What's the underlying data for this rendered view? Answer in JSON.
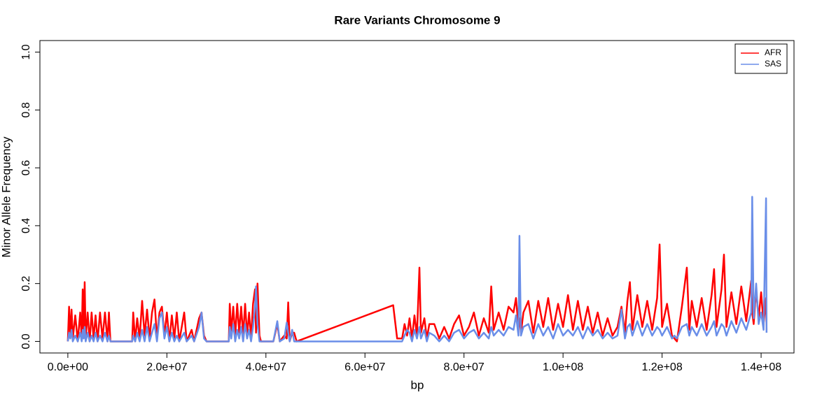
{
  "chart_data": {
    "type": "line",
    "title": "Rare Variants Chromosome 9",
    "xlabel": "bp",
    "ylabel": "Minor Allele Frequency",
    "x": [
      0,
      250000,
      500000,
      750000,
      1000000,
      1500000,
      2000000,
      2500000,
      2800000,
      3000000,
      3200000,
      3400000,
      3600000,
      4000000,
      4400000,
      4800000,
      5200000,
      5600000,
      6000000,
      6500000,
      7000000,
      7500000,
      8000000,
      8300000,
      8600000,
      13000000,
      13200000,
      13600000,
      14000000,
      14500000,
      15000000,
      15500000,
      16000000,
      16500000,
      17000000,
      17500000,
      18000000,
      18500000,
      19000000,
      19500000,
      20000000,
      20500000,
      21000000,
      21500000,
      22000000,
      22500000,
      23500000,
      24000000,
      25000000,
      25500000,
      26500000,
      27000000,
      27500000,
      28000000,
      32500000,
      32700000,
      33000000,
      33400000,
      33800000,
      34200000,
      34600000,
      35000000,
      35400000,
      35800000,
      36200000,
      36600000,
      37000000,
      37400000,
      37800000,
      38000000,
      38300000,
      38700000,
      39000000,
      41500000,
      42300000,
      42800000,
      43700000,
      44200000,
      44500000,
      44800000,
      45300000,
      45700000,
      46200000,
      65700000,
      66500000,
      67500000,
      68000000,
      68500000,
      69000000,
      69500000,
      70000000,
      70500000,
      71000000,
      71300000,
      72000000,
      72500000,
      73000000,
      74000000,
      75000000,
      76000000,
      77000000,
      78000000,
      79000000,
      80000000,
      81000000,
      82000000,
      83000000,
      84000000,
      85000000,
      85500000,
      86000000,
      87000000,
      88000000,
      89000000,
      90000000,
      90500000,
      91000000,
      91200000,
      91500000,
      92000000,
      93000000,
      94000000,
      95000000,
      96000000,
      97000000,
      98000000,
      99000000,
      100000000,
      101000000,
      102000000,
      103000000,
      104000000,
      105000000,
      106000000,
      107000000,
      108000000,
      109000000,
      110000000,
      111000000,
      111800000,
      112500000,
      113000000,
      113500000,
      114000000,
      115000000,
      116000000,
      117000000,
      118000000,
      119000000,
      119500000,
      120000000,
      121000000,
      122000000,
      122500000,
      123000000,
      124000000,
      125000000,
      125500000,
      126000000,
      127000000,
      128000000,
      129000000,
      130000000,
      130500000,
      131000000,
      132000000,
      132500000,
      133000000,
      134000000,
      135000000,
      136000000,
      137000000,
      138000000,
      138200000,
      138500000,
      139000000,
      139500000,
      140000000,
      140500000,
      141000000,
      141100000
    ],
    "series": [
      {
        "name": "AFR",
        "color": "#ff0000",
        "values": [
          0,
          0.12,
          0.02,
          0.11,
          0.01,
          0.09,
          0,
          0.1,
          0.01,
          0.18,
          0.02,
          0.205,
          0.01,
          0.1,
          0,
          0.1,
          0.01,
          0.09,
          0,
          0.1,
          0.01,
          0.1,
          0,
          0.1,
          0,
          0,
          0.1,
          0,
          0.08,
          0.01,
          0.14,
          0.02,
          0.11,
          0.01,
          0.1,
          0.145,
          0.01,
          0.1,
          0.12,
          0.02,
          0.1,
          0,
          0.09,
          0.01,
          0.1,
          0,
          0.1,
          0,
          0.04,
          0,
          0.08,
          0.1,
          0.02,
          0,
          0,
          0.13,
          0.03,
          0.12,
          0.02,
          0.13,
          0.03,
          0.12,
          0.02,
          0.13,
          0.02,
          0.1,
          0.01,
          0.13,
          0.18,
          0.03,
          0.2,
          0.02,
          0,
          0,
          0.06,
          0,
          0.02,
          0.01,
          0.135,
          0,
          0.03,
          0.03,
          0,
          0.125,
          0.01,
          0.01,
          0.06,
          0.02,
          0.08,
          0.01,
          0.09,
          0.02,
          0.255,
          0.03,
          0.08,
          0.01,
          0.06,
          0.06,
          0.01,
          0.05,
          0.01,
          0.06,
          0.09,
          0.02,
          0.05,
          0.1,
          0.02,
          0.08,
          0.03,
          0.19,
          0.04,
          0.1,
          0.04,
          0.12,
          0.1,
          0.15,
          0.05,
          0.08,
          0.03,
          0.1,
          0.14,
          0.03,
          0.14,
          0.05,
          0.15,
          0.04,
          0.13,
          0.05,
          0.16,
          0.04,
          0.14,
          0.04,
          0.12,
          0.03,
          0.1,
          0.02,
          0.08,
          0.02,
          0.05,
          0.12,
          0.03,
          0.14,
          0.205,
          0.04,
          0.16,
          0.05,
          0.14,
          0.04,
          0.15,
          0.335,
          0.05,
          0.13,
          0.02,
          0.01,
          0,
          0.12,
          0.255,
          0.04,
          0.14,
          0.05,
          0.15,
          0.04,
          0.16,
          0.25,
          0.05,
          0.18,
          0.3,
          0.05,
          0.17,
          0.06,
          0.19,
          0.07,
          0.21,
          0.1,
          0.06,
          0.18,
          0.08,
          0.17,
          0.06,
          0.15,
          0.04
        ]
      },
      {
        "name": "SAS",
        "color": "#6a8ee8",
        "values": [
          0,
          0.03,
          0.01,
          0.04,
          0,
          0.02,
          0,
          0.03,
          0,
          0.04,
          0.01,
          0.05,
          0,
          0.03,
          0,
          0.02,
          0,
          0.03,
          0,
          0.02,
          0,
          0.03,
          0,
          0.02,
          0,
          0,
          0.02,
          0,
          0.03,
          0,
          0.04,
          0,
          0.05,
          0,
          0.03,
          0.06,
          0,
          0.08,
          0.1,
          0.01,
          0.05,
          0,
          0.03,
          0,
          0.02,
          0,
          0.03,
          0,
          0.02,
          0,
          0.05,
          0.1,
          0.01,
          0,
          0,
          0.05,
          0.01,
          0.06,
          0,
          0.04,
          0.01,
          0.05,
          0,
          0.06,
          0.01,
          0.04,
          0,
          0.05,
          0.12,
          0.19,
          0.06,
          0,
          0,
          0,
          0.07,
          0,
          0.01,
          0.065,
          0.03,
          0,
          0.04,
          0,
          0,
          0,
          0,
          0,
          0.02,
          0.04,
          0.03,
          0,
          0.04,
          0.01,
          0.05,
          0.01,
          0.04,
          0,
          0.03,
          0.02,
          0,
          0.02,
          0,
          0.03,
          0.04,
          0.01,
          0.03,
          0.04,
          0.01,
          0.03,
          0.01,
          0.05,
          0.02,
          0.04,
          0.02,
          0.05,
          0.04,
          0.09,
          0.02,
          0.365,
          0.02,
          0.05,
          0.06,
          0.01,
          0.06,
          0.02,
          0.05,
          0.01,
          0.06,
          0.02,
          0.04,
          0.02,
          0.05,
          0.01,
          0.05,
          0.02,
          0.04,
          0.01,
          0.03,
          0.01,
          0.02,
          0.11,
          0.01,
          0.05,
          0.06,
          0.02,
          0.07,
          0.02,
          0.06,
          0.02,
          0.05,
          0.04,
          0.02,
          0.05,
          0.01,
          0.02,
          0.01,
          0.05,
          0.06,
          0.02,
          0.05,
          0.02,
          0.06,
          0.02,
          0.05,
          0.07,
          0.02,
          0.06,
          0.05,
          0.02,
          0.07,
          0.03,
          0.08,
          0.04,
          0.1,
          0.5,
          0.08,
          0.2,
          0.06,
          0.1,
          0.04,
          0.495,
          0.03
        ]
      }
    ],
    "xlim": [
      -5640000,
      146640000
    ],
    "xticks": [
      {
        "value": 0,
        "label": "0.0e+00"
      },
      {
        "value": 20000000,
        "label": "2.0e+07"
      },
      {
        "value": 40000000,
        "label": "4.0e+07"
      },
      {
        "value": 60000000,
        "label": "6.0e+07"
      },
      {
        "value": 80000000,
        "label": "8.0e+07"
      },
      {
        "value": 100000000,
        "label": "1.0e+08"
      },
      {
        "value": 120000000,
        "label": "1.2e+08"
      },
      {
        "value": 140000000,
        "label": "1.4e+08"
      }
    ],
    "ylim": [
      -0.04,
      1.04
    ],
    "yticks": [
      {
        "value": 0,
        "label": "0.0"
      },
      0.2,
      0.4,
      0.6,
      0.8,
      {
        "value": 1,
        "label": "1.0"
      }
    ],
    "grid": false,
    "legend": "top-right"
  }
}
